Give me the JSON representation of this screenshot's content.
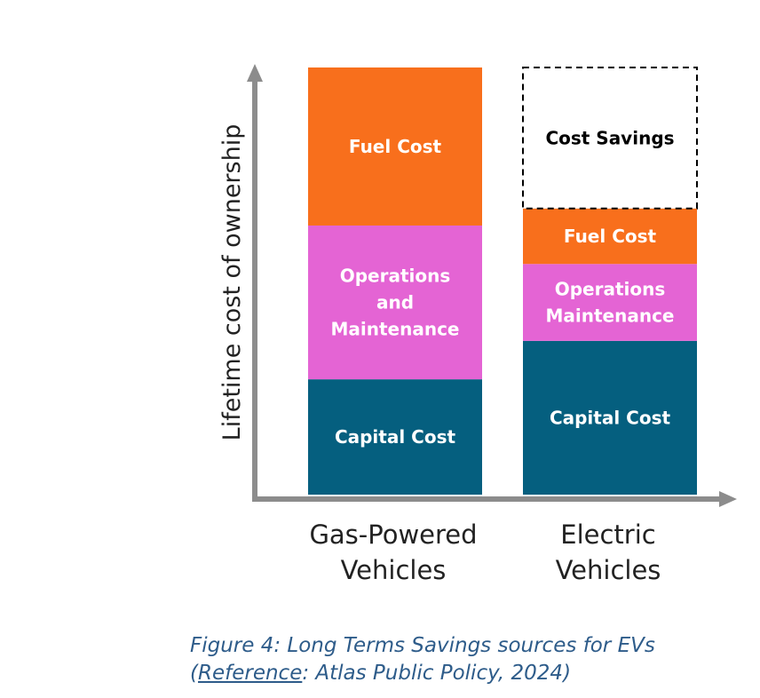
{
  "chart_data": {
    "type": "bar",
    "stacked": true,
    "title": "",
    "xlabel": "",
    "ylabel": "Lifetime cost of ownership",
    "ylim": [
      0,
      100
    ],
    "categories": [
      "Gas-Powered Vehicles",
      "Electric Vehicles"
    ],
    "category_lines": [
      [
        "Gas-Powered",
        "Vehicles"
      ],
      [
        "Electric",
        "Vehicles"
      ]
    ],
    "series": [
      {
        "name": "Capital Cost",
        "color": "#055f7f",
        "values": [
          27,
          36
        ]
      },
      {
        "name": "Operations and Maintenance",
        "color": "#e464d4",
        "values": [
          36,
          18
        ]
      },
      {
        "name": "Fuel Cost",
        "color": "#f86f1c",
        "values": [
          37,
          13
        ]
      },
      {
        "name": "Cost Savings",
        "color": "#ffffff",
        "style": "dashed",
        "values": [
          0,
          33
        ]
      }
    ],
    "segment_labels": [
      [
        [
          "Capital Cost"
        ],
        [
          "Operations",
          "and",
          "Maintenance"
        ],
        [
          "Fuel Cost"
        ],
        []
      ],
      [
        [
          "Capital Cost"
        ],
        [
          "Operations",
          "Maintenance"
        ],
        [
          "Fuel Cost"
        ],
        [
          "Cost Savings"
        ]
      ]
    ],
    "axis_color": "#8c8c8c",
    "grid": false
  },
  "caption": {
    "line1": "Figure 4: Long Terms Savings sources for EVs",
    "open_paren": "(",
    "reference_link": "Reference",
    "rest": ": Atlas Public Policy, 2024)"
  }
}
